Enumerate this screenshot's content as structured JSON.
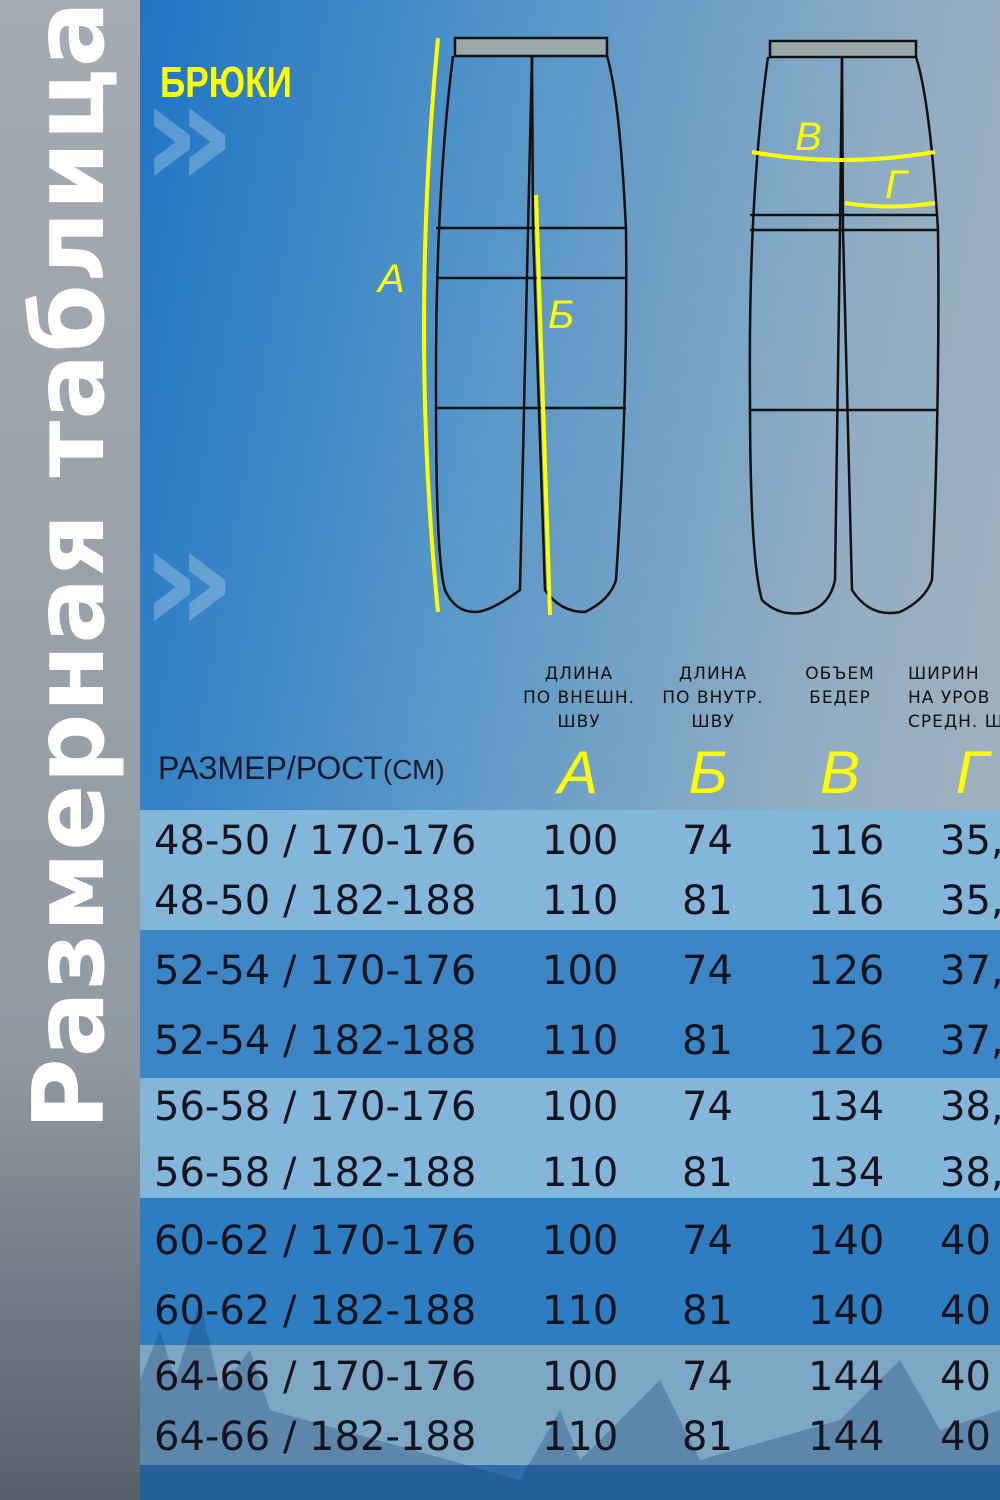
{
  "sidebar_title": "Размерная таблица",
  "title": "БРЮКИ",
  "diagram_labels": {
    "A": "А",
    "B": "Б",
    "V": "В",
    "G": "Г"
  },
  "columns": [
    {
      "header_lines": [
        "ДЛИНА",
        "ПО ВНЕШН.",
        "ШВУ"
      ],
      "letter": "А"
    },
    {
      "header_lines": [
        "ДЛИНА",
        "ПО ВНУТР.",
        "ШВУ"
      ],
      "letter": "Б"
    },
    {
      "header_lines": [
        "ОБЪЕМ",
        "БЕДЕР",
        ""
      ],
      "letter": "В"
    },
    {
      "header_lines": [
        "ШИРИН",
        "НА УРОВ",
        "СРЕДН. Ш"
      ],
      "letter": "Г"
    }
  ],
  "size_header": {
    "main": "РАЗМЕР/РОСТ",
    "unit": "(СМ)"
  },
  "rows": [
    [
      "48-50 / 170-176",
      "100",
      "74",
      "116",
      "35,"
    ],
    [
      "48-50 / 182-188",
      "110",
      "81",
      "116",
      "35,"
    ],
    [
      "52-54 / 170-176",
      "100",
      "74",
      "126",
      "37,"
    ],
    [
      "52-54 / 182-188",
      "110",
      "81",
      "126",
      "37,"
    ],
    [
      "56-58 / 170-176",
      "100",
      "74",
      "134",
      "38,"
    ],
    [
      "56-58 / 182-188",
      "110",
      "81",
      "134",
      "38,"
    ],
    [
      "60-62 / 170-176",
      "100",
      "74",
      "140",
      "40"
    ],
    [
      "60-62 / 182-188",
      "110",
      "81",
      "140",
      "40"
    ],
    [
      "64-66 / 170-176",
      "100",
      "74",
      "144",
      "40"
    ],
    [
      "64-66 / 182-188",
      "110",
      "81",
      "144",
      "40"
    ]
  ],
  "colors": {
    "accent": "#ffff00",
    "band_light": "#82b6da",
    "band_dark": "#3a84c5"
  }
}
